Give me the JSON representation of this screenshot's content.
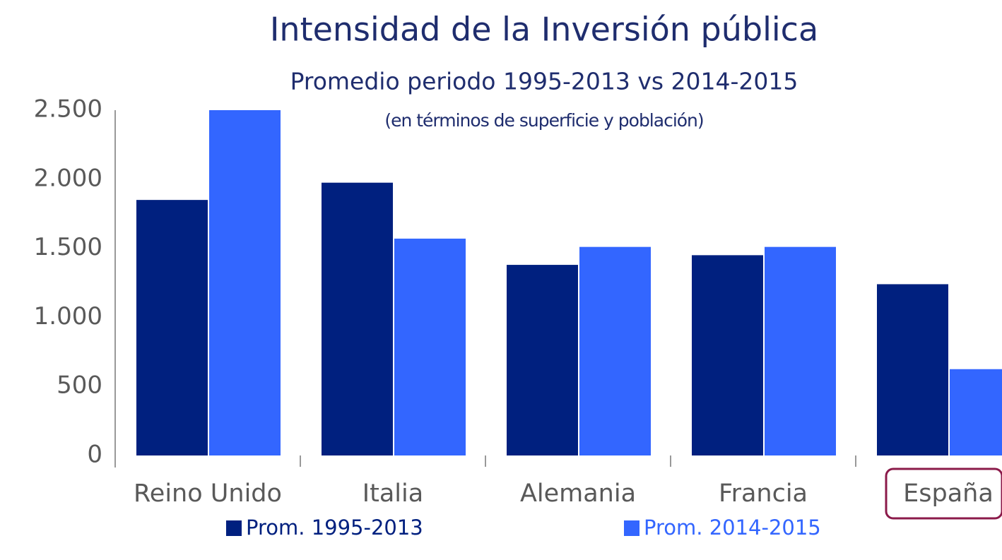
{
  "chart_data": {
    "type": "bar",
    "title": "Intensidad de la Inversión pública",
    "subtitle": "Promedio periodo 1995-2013 vs 2014-2015",
    "note": "(en términos de superficie y población)",
    "categories": [
      "Reino Unido",
      "Italia",
      "Alemania",
      "Francia",
      "España"
    ],
    "series": [
      {
        "name": "Prom. 1995-2013",
        "color": "#00207f",
        "values": [
          1850,
          1975,
          1380,
          1450,
          1240
        ]
      },
      {
        "name": "Prom. 2014-2015",
        "color": "#3366ff",
        "values": [
          2500,
          1570,
          1510,
          1510,
          625
        ]
      }
    ],
    "ylim": [
      0,
      2500
    ],
    "yticks": [
      0,
      500,
      {
        "value": 1000,
        "label": "1.000"
      },
      {
        "value": 1500,
        "label": "1.500"
      },
      {
        "value": 2000,
        "label": "2.000"
      },
      {
        "value": 2500,
        "label": "2.500"
      }
    ],
    "grid": false
  }
}
